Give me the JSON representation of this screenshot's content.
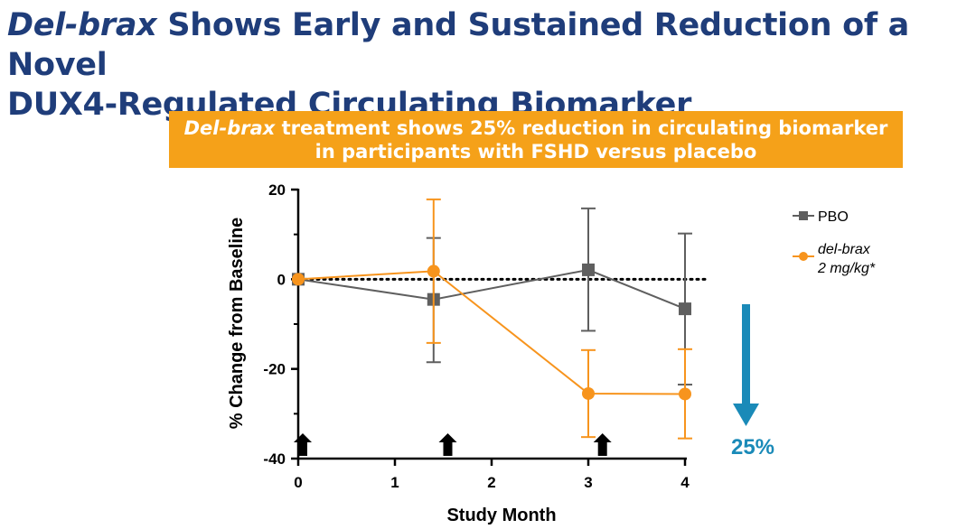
{
  "title": {
    "italic": "Del-brax",
    "rest_line1": " Shows Early and Sustained Reduction of a Novel",
    "line2": "DUX4-Regulated Circulating Biomarker"
  },
  "banner": {
    "italic": "Del-brax",
    "rest_line1": " treatment shows 25% reduction in circulating biomarker",
    "line2": "in participants with FSHD versus placebo"
  },
  "colors": {
    "title": "#1f3d7a",
    "banner_bg": "#f5a119",
    "pbo": "#5f5f5f",
    "delbrax": "#f7941d",
    "reduction_arrow": "#1a8ab8"
  },
  "icons": {
    "dosing_arrow": "up-arrow-icon",
    "reduction_arrow": "down-arrow-icon"
  },
  "chart_data": {
    "type": "line",
    "xlabel": "Study Month",
    "ylabel": "% Change from Baseline",
    "xlim": [
      0,
      4
    ],
    "ylim": [
      -40,
      20
    ],
    "xticks": [
      "0",
      "1",
      "2",
      "3",
      "4"
    ],
    "yticks": [
      "20",
      "0",
      "-20",
      "-40"
    ],
    "reference_line": 0,
    "series": [
      {
        "name": "PBO",
        "legend_lines": [
          "PBO"
        ],
        "italic": false,
        "marker": "square",
        "points": [
          {
            "x": 0,
            "y": 0,
            "err_low": 0,
            "err_high": 0
          },
          {
            "x": 1.4,
            "y": -4.5,
            "err_low": -18.5,
            "err_high": 9.2
          },
          {
            "x": 3,
            "y": 2.1,
            "err_low": -11.5,
            "err_high": 15.8
          },
          {
            "x": 4,
            "y": -6.6,
            "err_low": -23.5,
            "err_high": 10.2
          }
        ]
      },
      {
        "name": "del-brax 2 mg/kg*",
        "legend_lines": [
          "del-brax",
          "2 mg/kg*"
        ],
        "italic": true,
        "marker": "circle",
        "points": [
          {
            "x": 0,
            "y": 0,
            "err_low": 0,
            "err_high": 0
          },
          {
            "x": 1.4,
            "y": 1.8,
            "err_low": -14.2,
            "err_high": 17.8
          },
          {
            "x": 3,
            "y": -25.5,
            "err_low": -35.2,
            "err_high": -15.8
          },
          {
            "x": 4,
            "y": -25.6,
            "err_low": -35.5,
            "err_high": -15.6
          }
        ]
      }
    ],
    "dosing_months": [
      0,
      1.5,
      3.1
    ],
    "annotation": {
      "text": "25%",
      "direction": "down"
    }
  }
}
